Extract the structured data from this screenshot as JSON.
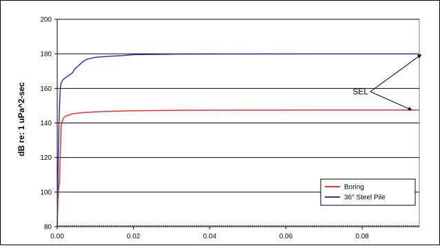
{
  "chart_data": {
    "type": "line",
    "title": "",
    "xlabel": "",
    "ylabel": "dB re: 1 uPa^2-sec",
    "xlim": [
      0,
      0.095
    ],
    "ylim": [
      80,
      200
    ],
    "x_ticks": [
      "0.00",
      "0.02",
      "0.04",
      "0.06",
      "0.08"
    ],
    "y_ticks": [
      "80",
      "100",
      "120",
      "140",
      "160",
      "180",
      "200"
    ],
    "grid": "horizontal",
    "legend_position": "bottom-right",
    "annotation": "SEL",
    "colors": {
      "boring": "#dd3333",
      "steel_pile": "#3333aa",
      "grid": "#000000",
      "plot_bg": "#ffffff"
    },
    "series": [
      {
        "name": "Boring",
        "color": "#dd3333",
        "x": [
          0,
          0.0002,
          0.0004,
          0.0006,
          0.0008,
          0.001,
          0.0013,
          0.0017,
          0.0022,
          0.003,
          0.004,
          0.005,
          0.007,
          0.01,
          0.015,
          0.02,
          0.03,
          0.05,
          0.07,
          0.095
        ],
        "y": [
          80,
          97,
          103,
          106,
          121,
          138,
          141,
          143,
          144,
          144.6,
          145.3,
          145.6,
          146,
          146.4,
          146.8,
          147.1,
          147.3,
          147.4,
          147.5,
          147.5
        ]
      },
      {
        "name": "36\" Steel Pile",
        "color": "#3333aa",
        "x": [
          0,
          0.0002,
          0.0004,
          0.0006,
          0.0008,
          0.001,
          0.0015,
          0.002,
          0.003,
          0.004,
          0.0045,
          0.005,
          0.006,
          0.007,
          0.008,
          0.01,
          0.013,
          0.017,
          0.02,
          0.03,
          0.05,
          0.07,
          0.095
        ],
        "y": [
          80,
          110,
          135,
          150,
          160,
          163,
          165,
          166,
          167.5,
          169,
          171,
          172,
          174,
          176,
          177,
          178,
          178.5,
          179,
          179.5,
          179.8,
          179.9,
          180,
          180
        ]
      }
    ]
  }
}
